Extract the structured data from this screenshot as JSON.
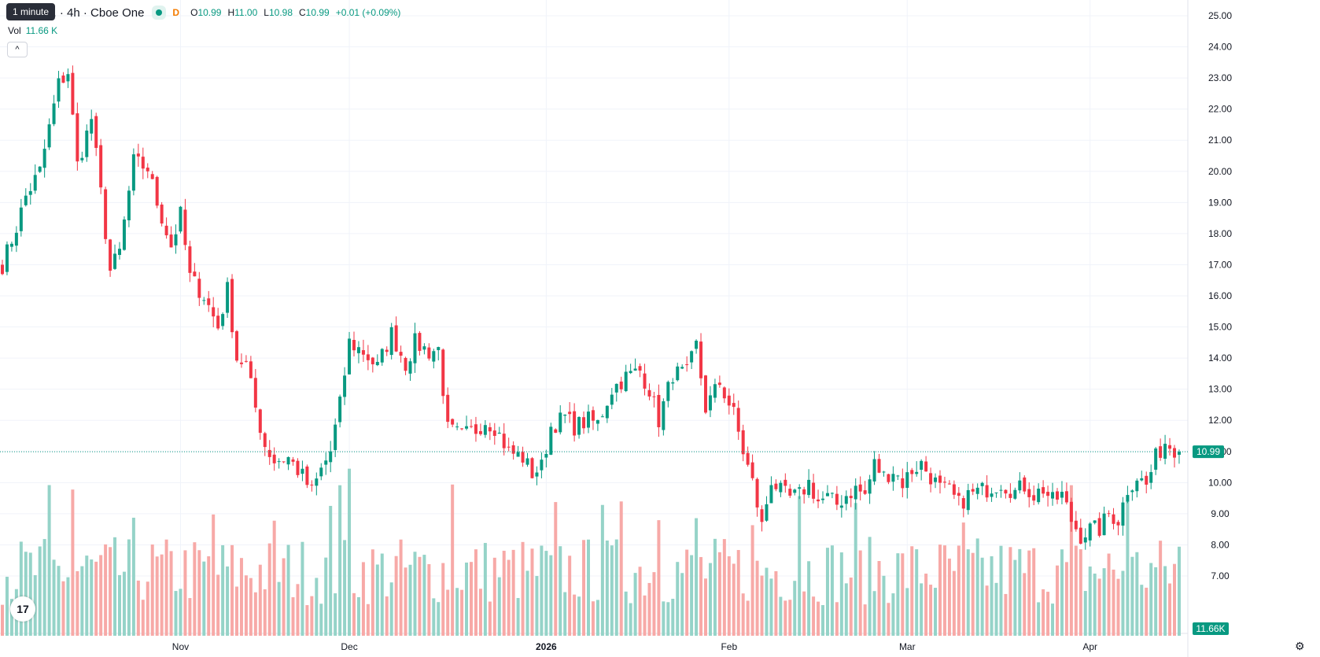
{
  "header": {
    "symbol_text": "park, Inc. · 4h · Cboe One",
    "tooltip": "1 minute",
    "flag": "D",
    "ohlc": {
      "o_label": "O",
      "o": "10.99",
      "h_label": "H",
      "h": "11.00",
      "l_label": "L",
      "l": "10.98",
      "c_label": "C",
      "c": "10.99",
      "change": "+0.01 (+0.09%)"
    }
  },
  "volume": {
    "label": "Vol",
    "value": "11.66 K"
  },
  "collapse_glyph": "^",
  "logo_text": "17",
  "gear_glyph": "⚙",
  "colors": {
    "up": "#089981",
    "down": "#f23645",
    "up_vol": "#95d3c8",
    "down_vol": "#f7a9a7",
    "grid": "#f0f3fa",
    "text": "#131722"
  },
  "chart_data": {
    "type": "candlestick",
    "interval": "4h",
    "price_axis": {
      "ylim": [
        6.6,
        25.3
      ],
      "ticks": [
        "25.00",
        "24.00",
        "23.00",
        "22.00",
        "21.00",
        "20.00",
        "19.00",
        "18.00",
        "17.00",
        "16.00",
        "15.00",
        "14.00",
        "13.00",
        "12.00",
        "11.00",
        "10.00",
        "9.00",
        "8.00",
        "7.00"
      ],
      "last_price_label": "10.99",
      "last_price": 10.99,
      "last_volume_label": "11.66K"
    },
    "time_axis": [
      {
        "label": "Nov",
        "index": 38
      },
      {
        "label": "Dec",
        "index": 74
      },
      {
        "label": "2026",
        "index": 116,
        "bold": true
      },
      {
        "label": "Feb",
        "index": 155
      },
      {
        "label": "Mar",
        "index": 193
      },
      {
        "label": "Apr",
        "index": 232
      }
    ],
    "volume_max": 24000,
    "anchors": [
      [
        0,
        17.0
      ],
      [
        3,
        18.2
      ],
      [
        5,
        19.2
      ],
      [
        8,
        20.0
      ],
      [
        12,
        22.8
      ],
      [
        14,
        23.2
      ],
      [
        16,
        20.2
      ],
      [
        19,
        21.7
      ],
      [
        21,
        19.3
      ],
      [
        23,
        16.8
      ],
      [
        25,
        17.4
      ],
      [
        28,
        20.3
      ],
      [
        31,
        20.1
      ],
      [
        33,
        19.0
      ],
      [
        36,
        17.6
      ],
      [
        38,
        18.6
      ],
      [
        40,
        16.6
      ],
      [
        43,
        16.0
      ],
      [
        46,
        15.0
      ],
      [
        48,
        16.2
      ],
      [
        50,
        14.0
      ],
      [
        52,
        13.8
      ],
      [
        54,
        12.4
      ],
      [
        56,
        11.2
      ],
      [
        58,
        10.7
      ],
      [
        61,
        10.8
      ],
      [
        64,
        10.2
      ],
      [
        66,
        9.7
      ],
      [
        68,
        10.4
      ],
      [
        70,
        11.0
      ],
      [
        72,
        12.5
      ],
      [
        74,
        14.5
      ],
      [
        77,
        14.2
      ],
      [
        80,
        13.7
      ],
      [
        83,
        14.8
      ],
      [
        86,
        13.8
      ],
      [
        88,
        14.5
      ],
      [
        91,
        14.2
      ],
      [
        93,
        14.3
      ],
      [
        95,
        11.7
      ],
      [
        98,
        11.5
      ],
      [
        101,
        11.7
      ],
      [
        103,
        12.0
      ],
      [
        105,
        11.8
      ],
      [
        108,
        11.0
      ],
      [
        111,
        10.8
      ],
      [
        113,
        10.3
      ],
      [
        115,
        10.5
      ],
      [
        117,
        11.8
      ],
      [
        120,
        12.1
      ],
      [
        122,
        11.8
      ],
      [
        125,
        12.0
      ],
      [
        127,
        11.9
      ],
      [
        130,
        13.0
      ],
      [
        133,
        13.4
      ],
      [
        136,
        13.6
      ],
      [
        138,
        13.0
      ],
      [
        140,
        12.0
      ],
      [
        143,
        13.5
      ],
      [
        146,
        13.5
      ],
      [
        148,
        14.4
      ],
      [
        150,
        12.4
      ],
      [
        153,
        13.2
      ],
      [
        156,
        12.2
      ],
      [
        158,
        11.0
      ],
      [
        160,
        10.0
      ],
      [
        162,
        8.6
      ],
      [
        164,
        10.1
      ],
      [
        166,
        9.7
      ],
      [
        168,
        9.5
      ],
      [
        170,
        9.6
      ],
      [
        172,
        10.0
      ],
      [
        174,
        9.4
      ],
      [
        176,
        9.5
      ],
      [
        178,
        9.3
      ],
      [
        180,
        9.6
      ],
      [
        182,
        9.8
      ],
      [
        184,
        9.6
      ],
      [
        186,
        10.6
      ],
      [
        188,
        10.2
      ],
      [
        190,
        10.4
      ],
      [
        192,
        10.0
      ],
      [
        194,
        10.4
      ],
      [
        196,
        10.6
      ],
      [
        198,
        10.2
      ],
      [
        200,
        9.8
      ],
      [
        202,
        9.7
      ],
      [
        204,
        9.3
      ],
      [
        206,
        9.6
      ],
      [
        208,
        9.7
      ],
      [
        210,
        9.8
      ],
      [
        213,
        10.0
      ],
      [
        216,
        9.7
      ],
      [
        218,
        9.9
      ],
      [
        220,
        9.6
      ],
      [
        222,
        9.8
      ],
      [
        224,
        9.4
      ],
      [
        226,
        9.6
      ],
      [
        228,
        8.8
      ],
      [
        230,
        8.3
      ],
      [
        232,
        8.5
      ],
      [
        234,
        8.5
      ],
      [
        236,
        9.0
      ],
      [
        238,
        8.8
      ],
      [
        240,
        9.8
      ],
      [
        242,
        10.2
      ],
      [
        244,
        9.9
      ],
      [
        246,
        10.8
      ],
      [
        248,
        11.3
      ],
      [
        250,
        11.1
      ],
      [
        251,
        10.99
      ]
    ],
    "note_series": "Candles derived from anchors (close per bar); volumes shown as bars below."
  }
}
